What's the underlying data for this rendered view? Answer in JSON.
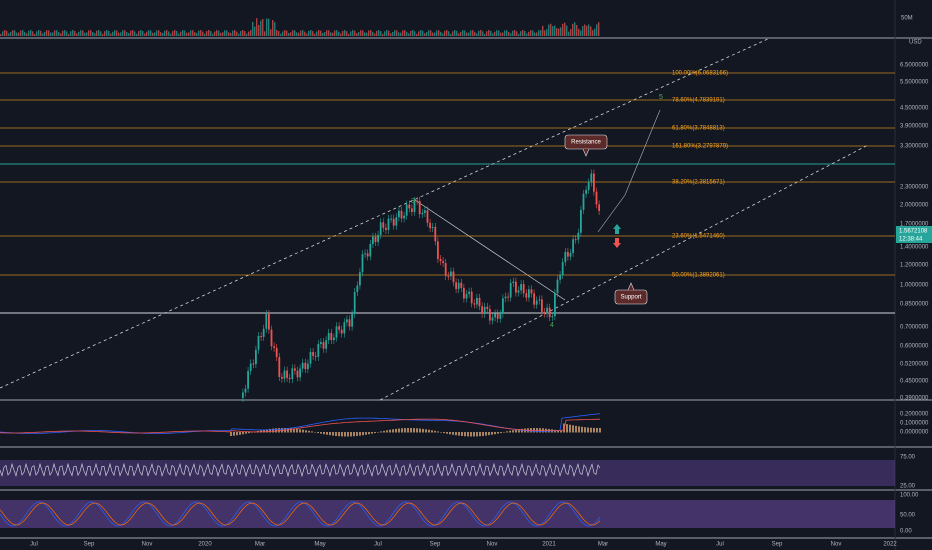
{
  "price_axis": {
    "volume_label": "50M",
    "currency": "USD",
    "labels": [
      "6.5000000",
      "5.5000000",
      "4.5000000",
      "3.9000000",
      "3.3000000",
      "2.3000000",
      "2.0000000",
      "1.7000000",
      "1.4000000",
      "1.2000000",
      "1.0000000",
      "0.8500000",
      "0.7000000",
      "0.6000000",
      "0.5200000",
      "0.4500000",
      "0.3900000"
    ],
    "current_price": "1.5672108",
    "countdown": "12:38:44"
  },
  "macd_axis": [
    "0.2000000",
    "0.1000000",
    "0.0000000"
  ],
  "rsi_axis": [
    "75.00",
    "25.00"
  ],
  "stoch_axis": [
    "100.00",
    "50.00",
    "0.00"
  ],
  "time_axis": [
    "Jul",
    "Sep",
    "Nov",
    "2020",
    "Mar",
    "May",
    "Jul",
    "Sep",
    "Nov",
    "2021",
    "Mar",
    "May",
    "Jul",
    "Sep",
    "Nov",
    "2022"
  ],
  "fib_levels": [
    "100.00%(6.0683166)",
    "78.60%(4.7839191)",
    "61.80%(3.7848813)",
    "161.80%(3.2797879)",
    "38.20%(2.3815671)",
    "23.60%(1.5471460)",
    "50.00%(1.3892061)"
  ],
  "annotations": {
    "resistance": "Resistance",
    "support": "Support"
  },
  "waves": [
    "3",
    "4",
    "5"
  ]
}
